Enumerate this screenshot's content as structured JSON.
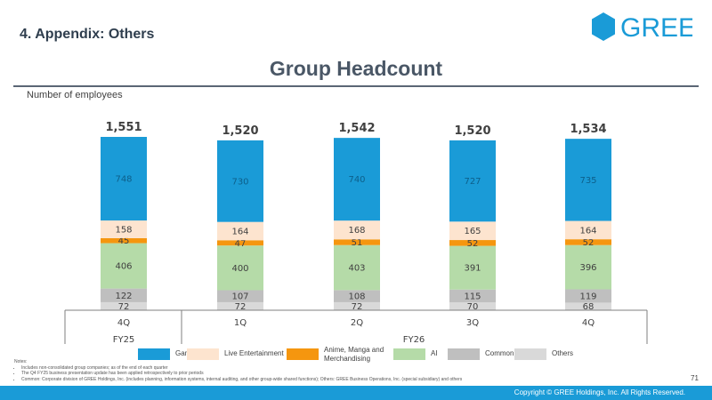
{
  "header": {
    "section_title": "4. Appendix: Others",
    "logo_text": "GREE",
    "main_title": "Group Headcount",
    "y_axis_label": "Number of employees"
  },
  "colors": {
    "Game": "#1a9bd7",
    "Live Entertainment": "#fde4cf",
    "Anime, Manga and Merchandising": "#f5960f",
    "AI": "#b5dba8",
    "Common": "#bfbfbf",
    "Others": "#d9d9d9",
    "accent": "#1a9bd7"
  },
  "chart_data": {
    "type": "bar",
    "stacked": true,
    "categories": [
      "4Q",
      "1Q",
      "2Q",
      "3Q",
      "4Q"
    ],
    "category_groups": [
      {
        "label": "FY25",
        "categories": [
          "4Q"
        ]
      },
      {
        "label": "FY26",
        "categories": [
          "1Q",
          "2Q",
          "3Q",
          "4Q"
        ]
      }
    ],
    "series": [
      {
        "name": "Others",
        "values": [
          72,
          72,
          72,
          70,
          68
        ]
      },
      {
        "name": "Common",
        "values": [
          122,
          107,
          108,
          115,
          119
        ]
      },
      {
        "name": "AI",
        "values": [
          406,
          400,
          403,
          391,
          396
        ]
      },
      {
        "name": "Anime, Manga and Merchandising",
        "values": [
          45,
          47,
          51,
          52,
          52
        ]
      },
      {
        "name": "Live Entertainment",
        "values": [
          158,
          164,
          168,
          165,
          164
        ]
      },
      {
        "name": "Game",
        "values": [
          748,
          730,
          740,
          727,
          735
        ]
      }
    ],
    "totals": [
      "1,551",
      "1,520",
      "1,542",
      "1,520",
      "1,534"
    ],
    "ylabel": "Number of employees",
    "ylim": [
      0,
      1551
    ],
    "grid": false,
    "legend_position": "bottom"
  },
  "legend": [
    {
      "name": "Game"
    },
    {
      "name": "Live Entertainment"
    },
    {
      "name": "Anime, Manga and Merchandising",
      "lines": [
        "Anime, Manga and",
        "Merchandising"
      ]
    },
    {
      "name": "AI"
    },
    {
      "name": "Common"
    },
    {
      "name": "Others"
    }
  ],
  "notes": {
    "heading": "Notes:",
    "items": [
      "Includes non-consolidated group companies; as of the end of each quarter",
      "The Q4 FY25 business presentation update has been applied retrospectively to prior periods",
      "Common: Corporate division of GREE Holdings, Inc. (includes planning, information systems, internal auditing, and other group-wide shared functions); Others: GREE Business Operations, Inc. (special subsidiary) and others"
    ]
  },
  "page_number": "71",
  "footer": {
    "copyright": "Copyright © GREE Holdings, Inc. All Rights Reserved."
  }
}
